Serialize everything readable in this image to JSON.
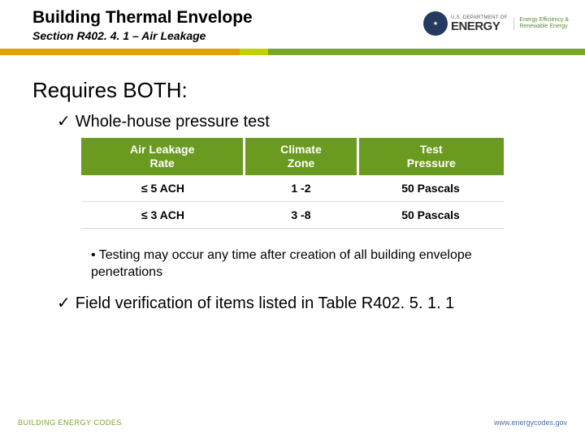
{
  "header": {
    "title": "Building Thermal Envelope",
    "subtitle": "Section R402. 4. 1 – Air Leakage",
    "logo": {
      "dept": "U.S. DEPARTMENT OF",
      "energy": "ENERGY",
      "eere_line1": "Energy Efficiency &",
      "eere_line2": "Renewable Energy"
    }
  },
  "stripe": {
    "seg1_color": "#e0a000",
    "seg2_color": "#c0d000",
    "seg3_color": "#7aa52b"
  },
  "content": {
    "requires": "Requires BOTH:",
    "check1": "Whole-house pressure test",
    "check2": "Field verification of items listed in Table R402. 5. 1. 1",
    "bullet": "Testing may occur any time after creation of all building envelope penetrations"
  },
  "table": {
    "headers": [
      "Air Leakage\nRate",
      "Climate\nZone",
      "Test\nPressure"
    ],
    "header_bg": "#6a9a1f",
    "header_color": "#ffffff",
    "rows": [
      [
        "≤ 5 ACH",
        "1 -2",
        "50 Pascals"
      ],
      [
        "≤ 3 ACH",
        "3 -8",
        "50 Pascals"
      ]
    ]
  },
  "footer": {
    "left": "BUILDING ENERGY CODES",
    "right": "www.energycodes.gov",
    "left_color": "#7aa52b",
    "right_color": "#4a6ea9"
  }
}
